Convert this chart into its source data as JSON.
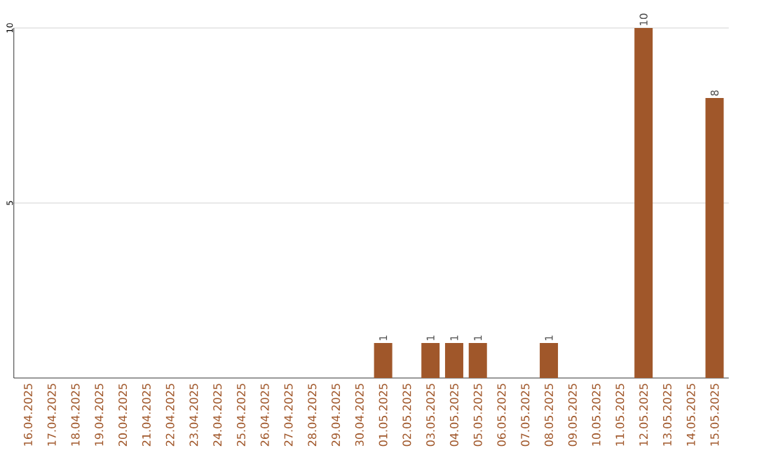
{
  "chart_data": {
    "type": "bar",
    "categories": [
      "16.04.2025",
      "17.04.2025",
      "18.04.2025",
      "19.04.2025",
      "20.04.2025",
      "21.04.2025",
      "22.04.2025",
      "23.04.2025",
      "24.04.2025",
      "25.04.2025",
      "26.04.2025",
      "27.04.2025",
      "28.04.2025",
      "29.04.2025",
      "30.04.2025",
      "01.05.2025",
      "02.05.2025",
      "03.05.2025",
      "04.05.2025",
      "05.05.2025",
      "06.05.2025",
      "07.05.2025",
      "08.05.2025",
      "09.05.2025",
      "10.05.2025",
      "11.05.2025",
      "12.05.2025",
      "13.05.2025",
      "14.05.2025",
      "15.05.2025"
    ],
    "values": [
      0,
      0,
      0,
      0,
      0,
      0,
      0,
      0,
      0,
      0,
      0,
      0,
      0,
      0,
      0,
      1,
      0,
      1,
      1,
      1,
      0,
      0,
      1,
      0,
      0,
      0,
      10,
      0,
      0,
      8
    ],
    "value_labels": [
      null,
      null,
      null,
      null,
      null,
      null,
      null,
      null,
      null,
      null,
      null,
      null,
      null,
      null,
      null,
      "1",
      null,
      "1",
      "1",
      "1",
      null,
      null,
      "1",
      null,
      null,
      null,
      "10",
      null,
      null,
      "8"
    ],
    "color": "#a0572a",
    "ylim": [
      0,
      10
    ],
    "yticks": [
      5,
      10
    ],
    "grid": "y"
  }
}
